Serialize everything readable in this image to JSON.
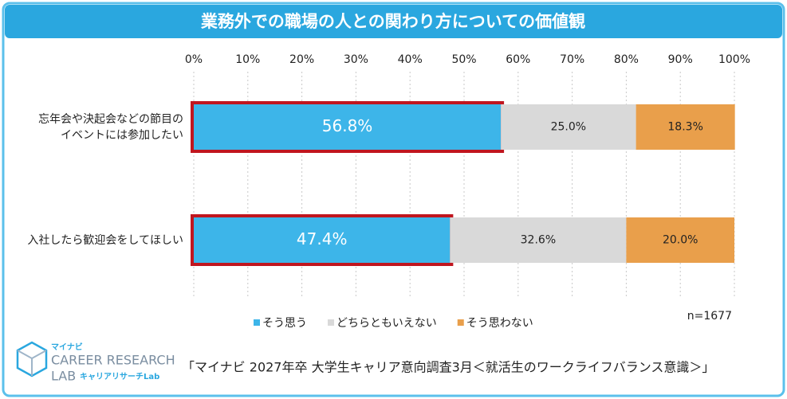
{
  "chart_data": {
    "type": "stacked_barh",
    "title": "業務外での職場の人との関わり方についての価値観",
    "categories": [
      "忘年会や決起会などの節目の\nイベントには参加したい",
      "入社したら歓迎会をしてほしい"
    ],
    "series": [
      {
        "name": "そう思う",
        "color": "#3db5e9",
        "values": [
          56.8,
          47.4
        ],
        "value_labels": [
          "56.8%",
          "47.4%"
        ]
      },
      {
        "name": "どちらともいえない",
        "color": "#d9d9d9",
        "values": [
          25.0,
          32.6
        ],
        "value_labels": [
          "25.0%",
          "32.6%"
        ]
      },
      {
        "name": "そう思わない",
        "color": "#e99f4b",
        "values": [
          18.3,
          20.0
        ],
        "value_labels": [
          "18.3%",
          "20.0%"
        ]
      }
    ],
    "xlim": [
      0,
      100
    ],
    "xticks": [
      {
        "value": 0,
        "label": "0%"
      },
      {
        "value": 10,
        "label": "10%"
      },
      {
        "value": 20,
        "label": "20%"
      },
      {
        "value": 30,
        "label": "30%"
      },
      {
        "value": 40,
        "label": "40%"
      },
      {
        "value": 50,
        "label": "50%"
      },
      {
        "value": 60,
        "label": "60%"
      },
      {
        "value": 70,
        "label": "70%"
      },
      {
        "value": 80,
        "label": "80%"
      },
      {
        "value": 90,
        "label": "90%"
      },
      {
        "value": 100,
        "label": "100%"
      }
    ],
    "grid": true,
    "highlight_series": 0,
    "highlight_color": "#c0161f",
    "sample_note": "n=1677"
  },
  "footer": {
    "logo": {
      "brand": "マイナビ",
      "line1": "CAREER RESEARCH",
      "line2": "LAB",
      "sub": "キャリアリサーチLab"
    },
    "source": "「マイナビ 2027年卒 大学生キャリア意向調査3月＜就活生のワークライフバランス意識＞」"
  }
}
